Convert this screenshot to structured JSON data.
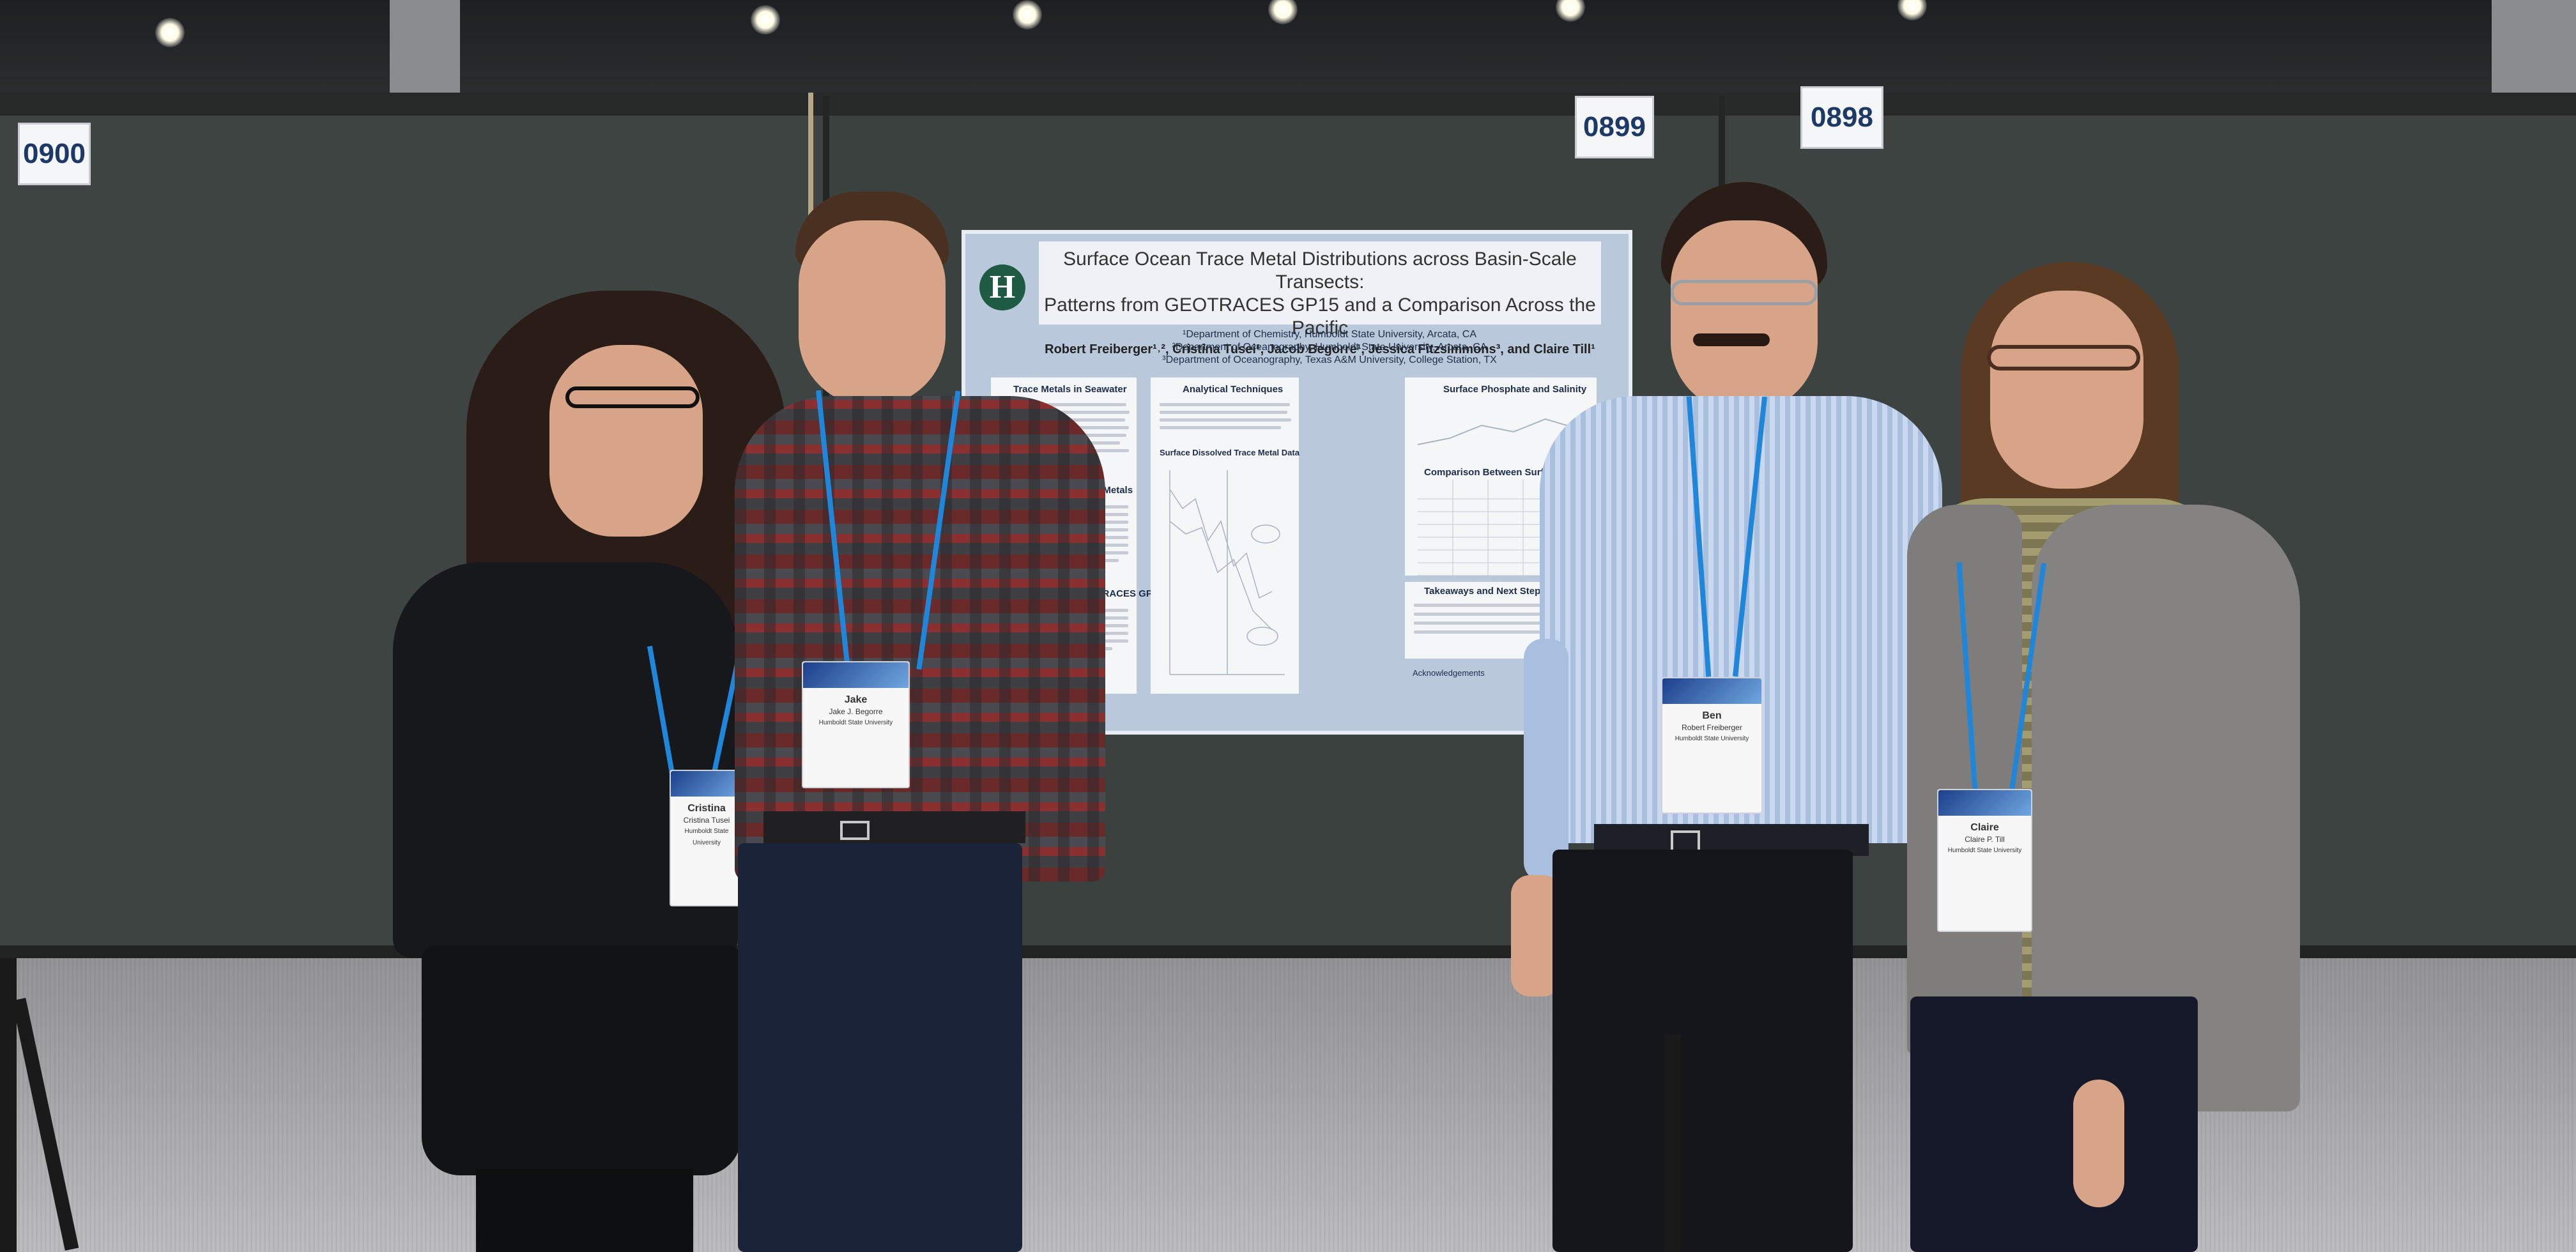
{
  "booth_numbers": {
    "left": "0900",
    "middle": "0899",
    "right": "0898"
  },
  "poster": {
    "logo": "H",
    "title_line1": "Surface Ocean Trace Metal Distributions across Basin-Scale Transects:",
    "title_line2": "Patterns from GEOTRACES GP15 and a Comparison Across the Pacific",
    "authors": "Robert Freiberger¹˒², Cristina Tusei¹, Jacob Begorre¹, Jessica Fitzsimmons³, and Claire Till¹",
    "affiliations": [
      "¹Department of Chemistry, Humboldt State University, Arcata, CA",
      "²Department of Oceanography, Humboldt State University, Arcata, CA",
      "³Department of Oceanography, Texas A&M University, College Station, TX"
    ],
    "sections": {
      "trace_metals": "Trace Metals in Seawater",
      "trace_metals_2": "Trace Metals",
      "cruise": "GEOTRACES GP15 Cruise",
      "analytical": "Analytical Techniques",
      "dissolved": "Surface Dissolved Trace Metal Data",
      "phosphate": "Surface Phosphate and Salinity",
      "comparison": "Comparison Between Surface Waters",
      "takeaways": "Takeaways and Next Steps",
      "acknowledgements": "Acknowledgements"
    }
  },
  "badges": {
    "cristina": {
      "first": "Cristina",
      "full": "Cristina Tusei",
      "org": "Humboldt State University"
    },
    "jake": {
      "first": "Jake",
      "full": "Jake J. Begorre",
      "org": "Humboldt State University"
    },
    "ben": {
      "first": "Ben",
      "full": "Robert Freiberger",
      "org": "Humboldt State University"
    },
    "claire": {
      "first": "Claire",
      "full": "Claire P. Till",
      "org": "Humboldt State University"
    }
  },
  "colors": {
    "wall": "#3e4441",
    "floor": "#b8b8ba",
    "poster_bg": "#b9c8db",
    "lanyard": "#1f86d9",
    "logo": "#1f5b43"
  }
}
